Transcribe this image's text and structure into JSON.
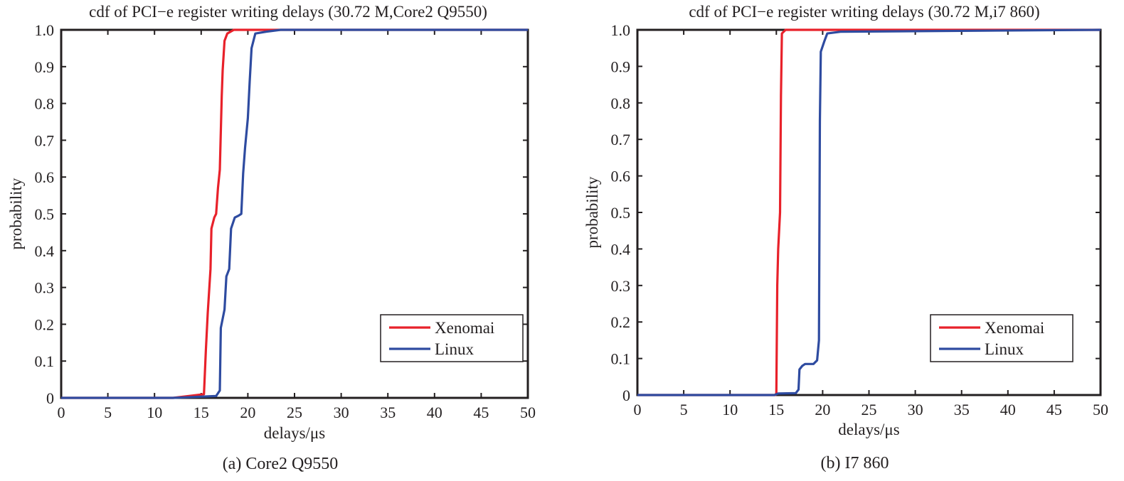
{
  "chart_data": [
    {
      "type": "line",
      "title": "cdf of PCI−e register writing delays (30.72 M,Core2 Q9550)",
      "caption": "(a) Core2 Q9550",
      "xlabel": "delays/μs",
      "ylabel": "probability",
      "xlim": [
        0,
        50
      ],
      "ylim": [
        0,
        1
      ],
      "xticks": [
        0,
        5,
        10,
        15,
        20,
        25,
        30,
        35,
        40,
        45,
        50
      ],
      "yticks": [
        0,
        0.1,
        0.2,
        0.3,
        0.4,
        0.5,
        0.6,
        0.7,
        0.8,
        0.9,
        1.0
      ],
      "ytick_labels": [
        "0",
        "0.1",
        "0.2",
        "0.3",
        "0.4",
        "0.5",
        "0.6",
        "0.7",
        "0.8",
        "0.9",
        "1.0"
      ],
      "grid": false,
      "legend_position": "bottom-right",
      "series": [
        {
          "name": "Xenomai",
          "color": "#e8212a",
          "points": [
            [
              0,
              0
            ],
            [
              12,
              0
            ],
            [
              15.3,
              0.01
            ],
            [
              15.5,
              0.13
            ],
            [
              15.7,
              0.23
            ],
            [
              16.0,
              0.35
            ],
            [
              16.1,
              0.46
            ],
            [
              16.4,
              0.49
            ],
            [
              16.6,
              0.5
            ],
            [
              16.8,
              0.57
            ],
            [
              17.0,
              0.62
            ],
            [
              17.2,
              0.82
            ],
            [
              17.3,
              0.89
            ],
            [
              17.5,
              0.97
            ],
            [
              17.8,
              0.99
            ],
            [
              18.5,
              1.0
            ],
            [
              50,
              1.0
            ]
          ]
        },
        {
          "name": "Linux",
          "color": "#2e4ba0",
          "points": [
            [
              0,
              0
            ],
            [
              12,
              0
            ],
            [
              16.6,
              0.005
            ],
            [
              17.0,
              0.02
            ],
            [
              17.1,
              0.19
            ],
            [
              17.5,
              0.24
            ],
            [
              17.7,
              0.33
            ],
            [
              18.0,
              0.35
            ],
            [
              18.2,
              0.46
            ],
            [
              18.6,
              0.49
            ],
            [
              19.0,
              0.495
            ],
            [
              19.3,
              0.5
            ],
            [
              19.5,
              0.61
            ],
            [
              19.7,
              0.68
            ],
            [
              20.0,
              0.76
            ],
            [
              20.2,
              0.86
            ],
            [
              20.4,
              0.95
            ],
            [
              20.8,
              0.99
            ],
            [
              22.0,
              0.995
            ],
            [
              23.5,
              1.0
            ],
            [
              50,
              1.0
            ]
          ]
        }
      ]
    },
    {
      "type": "line",
      "title": "cdf of PCI−e register writing delays (30.72 M,i7 860)",
      "caption": "(b) I7 860",
      "xlabel": "delays/μs",
      "ylabel": "probability",
      "xlim": [
        0,
        50
      ],
      "ylim": [
        0,
        1
      ],
      "xticks": [
        0,
        5,
        10,
        15,
        20,
        25,
        30,
        35,
        40,
        45,
        50
      ],
      "yticks": [
        0,
        0.1,
        0.2,
        0.3,
        0.4,
        0.5,
        0.6,
        0.7,
        0.8,
        0.9,
        1.0
      ],
      "ytick_labels": [
        "0",
        "0.1",
        "0.2",
        "0.3",
        "0.4",
        "0.5",
        "0.6",
        "0.7",
        "0.8",
        "0.9",
        "1.0"
      ],
      "grid": false,
      "legend_position": "bottom-right",
      "series": [
        {
          "name": "Xenomai",
          "color": "#e8212a",
          "points": [
            [
              0,
              0
            ],
            [
              14.9,
              0
            ],
            [
              15.0,
              0.005
            ],
            [
              15.1,
              0.3
            ],
            [
              15.2,
              0.4
            ],
            [
              15.4,
              0.5
            ],
            [
              15.5,
              0.82
            ],
            [
              15.6,
              0.99
            ],
            [
              16.0,
              1.0
            ],
            [
              50,
              1.0
            ]
          ]
        },
        {
          "name": "Linux",
          "color": "#2e4ba0",
          "points": [
            [
              0,
              0
            ],
            [
              14.8,
              0
            ],
            [
              15.2,
              0.004
            ],
            [
              17.1,
              0.005
            ],
            [
              17.4,
              0.015
            ],
            [
              17.5,
              0.07
            ],
            [
              17.8,
              0.08
            ],
            [
              18.1,
              0.085
            ],
            [
              19.0,
              0.085
            ],
            [
              19.4,
              0.095
            ],
            [
              19.6,
              0.15
            ],
            [
              19.7,
              0.75
            ],
            [
              19.8,
              0.94
            ],
            [
              20.2,
              0.97
            ],
            [
              20.5,
              0.99
            ],
            [
              22.0,
              0.995
            ],
            [
              50,
              1.0
            ]
          ]
        }
      ]
    }
  ]
}
